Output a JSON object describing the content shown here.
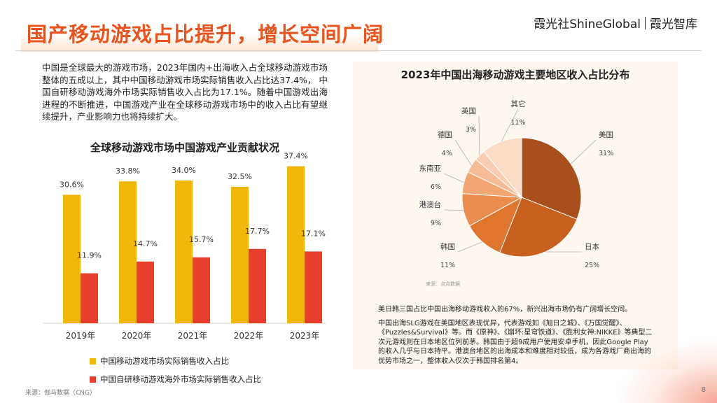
{
  "header": {
    "title": "国产移动游戏占比提升，增长空间广阔",
    "brand_left": "霞光社ShineGlobal",
    "brand_right": "霞光智库"
  },
  "intro_text": "中国是全球最大的游戏市场，2023年国内+出海收入占全球移动游戏市场整体的五成以上，其中中国移动游戏市场实际销售收入占比达37.4%， 中国自研移动游戏海外市场实际销售收入占比为17.1%。随着中国游戏出海进程的不断推进，中国游戏产业在全球移动游戏市场中的收入占比有望继续提升，产业影响力也将持续扩大。",
  "colors": {
    "accent": "#e8541d",
    "series_domestic": "#f0b80c",
    "series_overseas": "#e83f2d",
    "pie_us": "#a84f1d",
    "pie_japan": "#c8601f",
    "pie_korea": "#e0752e",
    "pie_hkmo_tw": "#ea8d4e",
    "pie_sea": "#f1a673",
    "pie_germany": "#f5bc96",
    "pie_uk": "#f8cdb0",
    "pie_other": "#fadcc7"
  },
  "chart_data": [
    {
      "type": "bar",
      "title": "全球移动游戏市场中国游戏产业贡献状况",
      "categories": [
        "2019年",
        "2020年",
        "2021年",
        "2022年",
        "2023年"
      ],
      "series": [
        {
          "name": "中国移动游戏市场实际销售收入占比",
          "values": [
            30.6,
            33.8,
            34.0,
            32.5,
            37.4
          ],
          "labels": [
            "30.6%",
            "33.8%",
            "34.0%",
            "32.5%",
            "37.4%"
          ]
        },
        {
          "name": "中国自研移动游戏海外市场实际销售收入占比",
          "values": [
            11.9,
            14.7,
            15.7,
            17.7,
            17.1
          ],
          "labels": [
            "11.9%",
            "14.7%",
            "15.7%",
            "17.7%",
            "17.1%"
          ]
        }
      ],
      "ylim": [
        0,
        40
      ],
      "grid": false,
      "legend": "bottom"
    },
    {
      "type": "pie",
      "title": "2023年中国出海移动游戏主要地区收入占比分布",
      "slices": [
        {
          "label": "美国",
          "value": 31,
          "value_label": "31%"
        },
        {
          "label": "日本",
          "value": 25,
          "value_label": "25%"
        },
        {
          "label": "韩国",
          "value": 11,
          "value_label": "11%"
        },
        {
          "label": "港澳台",
          "value": 9,
          "value_label": "9%"
        },
        {
          "label": "东南亚",
          "value": 6,
          "value_label": "6%"
        },
        {
          "label": "德国",
          "value": 4,
          "value_label": "4%"
        },
        {
          "label": "英国",
          "value": 3,
          "value_label": "3%"
        },
        {
          "label": "其它",
          "value": 11,
          "value_label": "11%"
        }
      ],
      "source": "来源：点点数据"
    }
  ],
  "notes": {
    "summary": "美日韩三国占比中国出海移动游戏收入的67%，新兴出海市场仍有广阔增长空间。",
    "detail": "中国出海SLG游戏在美国地区表现优异，代表游戏如《旭日之城》、《万国觉醒》、《Puzzles&Survival》等。而《原神》、《崩坏:星穹铁道》、《胜利女神:NIKKE》等典型二次元游戏则在日本地区位列前茅。韩国由于超9成用户使用安卓手机，因此Google Play的收入几乎与日本持平。港澳台地区的出海成本和难度相对较低，成为各游戏厂商出海的优势市场之一，整体收入仅次于韩国排名第4。"
  },
  "footer": {
    "source": "来源：伽马数据（CNG）",
    "page_number": "8"
  }
}
